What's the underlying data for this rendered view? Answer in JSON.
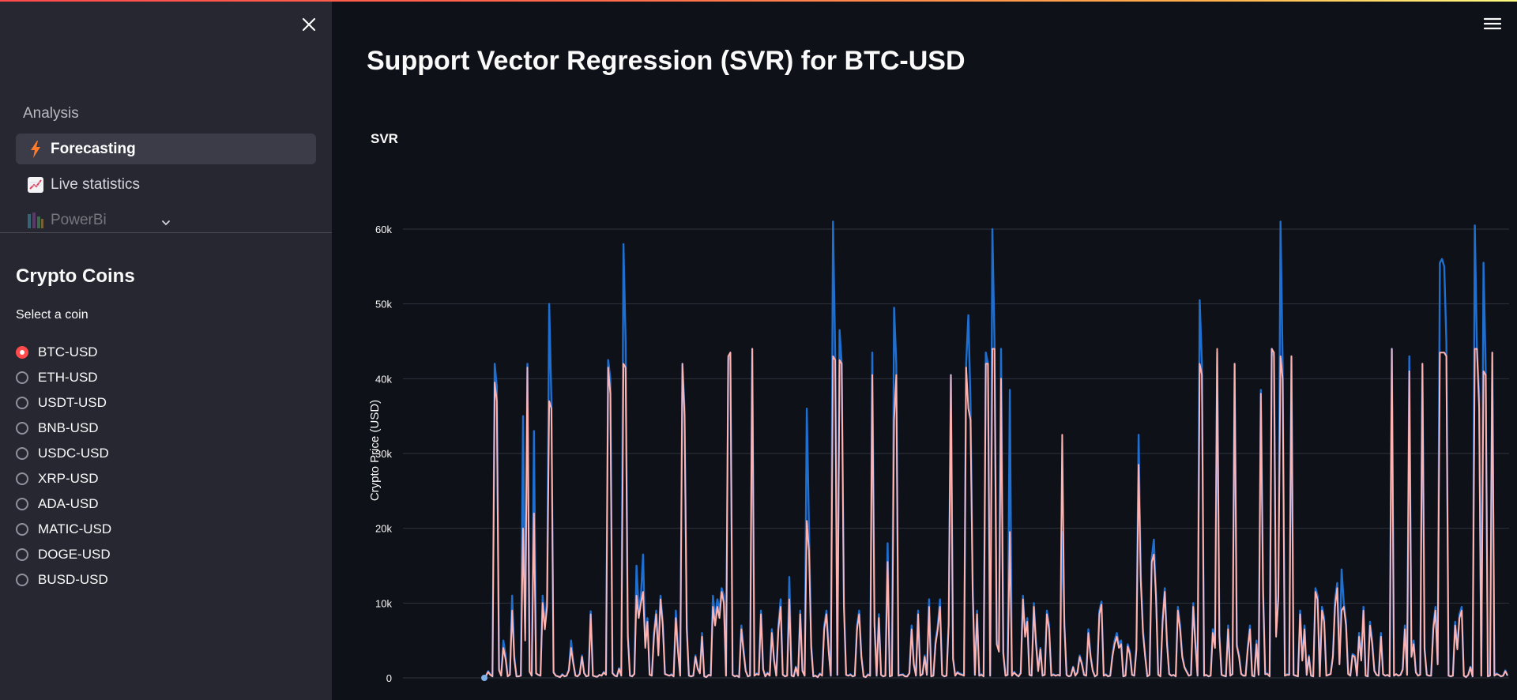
{
  "sidebar": {
    "close_icon": "close-icon",
    "section_label": "Analysis",
    "nav_items": [
      {
        "label": "Forecasting",
        "icon": "lightning-icon",
        "active": true
      },
      {
        "label": "Live statistics",
        "icon": "chart-increasing-icon",
        "active": false
      },
      {
        "label": "PowerBi",
        "icon": "powerbi-icon",
        "active": false
      }
    ],
    "heading": "Crypto Coins",
    "select_label": "Select a coin",
    "coins": [
      "BTC-USD",
      "ETH-USD",
      "USDT-USD",
      "BNB-USD",
      "USDC-USD",
      "XRP-USD",
      "ADA-USD",
      "MATIC-USD",
      "DOGE-USD",
      "BUSD-USD"
    ],
    "selected_coin": "BTC-USD"
  },
  "main": {
    "menu_icon": "hamburger-menu-icon",
    "title": "Support Vector Regression (SVR) for BTC-USD",
    "chart_title": "SVR"
  },
  "colors": {
    "accent": "#ff4b4b",
    "actual_series": "#1f6fd1",
    "predicted_series": "#ffb3b0"
  },
  "chart_data": {
    "type": "line",
    "title": "SVR",
    "xlabel": "",
    "ylabel": "Crypto Price (USD)",
    "ylim": [
      0,
      62000
    ],
    "y_ticks": [
      0,
      10000,
      20000,
      30000,
      40000,
      50000,
      60000
    ],
    "y_tick_labels": [
      "0",
      "10k",
      "20k",
      "30k",
      "40k",
      "50k",
      "60k"
    ],
    "grid": true,
    "series": [
      {
        "color": "#1f6fd1",
        "values": [
          300,
          900,
          500,
          200,
          42000,
          39000,
          1200,
          300,
          5000,
          3000,
          200,
          500,
          11000,
          3000,
          200,
          200,
          300,
          35000,
          6000,
          42000,
          900,
          300,
          33000,
          600,
          400,
          300,
          11000,
          7000,
          10500,
          50000,
          37000,
          800,
          300,
          200,
          100,
          500,
          200,
          300,
          1100,
          5000,
          2100,
          300,
          200,
          600,
          3000,
          700,
          200,
          300,
          8900,
          300,
          200,
          150,
          400,
          300,
          800,
          500,
          42500,
          40000,
          700,
          300,
          200,
          1300,
          300,
          58000,
          45000,
          6000,
          300,
          200,
          600,
          15000,
          9000,
          11000,
          16500,
          4500,
          8000,
          500,
          300,
          6000,
          9000,
          3500,
          11000,
          7500,
          600,
          400,
          300,
          500,
          200,
          9000,
          4000,
          300,
          42000,
          36000,
          7000,
          300,
          200,
          300,
          3000,
          1300,
          700,
          6000,
          200,
          100,
          400,
          300,
          11000,
          8000,
          10500,
          9000,
          12000,
          11000,
          300,
          42500,
          43500,
          400,
          200,
          300,
          100,
          7000,
          4000,
          1000,
          200,
          300,
          44000,
          300,
          600,
          500,
          9000,
          1200,
          200,
          700,
          300,
          6500,
          2400,
          300,
          7000,
          10500,
          500,
          200,
          300,
          13500,
          300,
          200,
          1500,
          300,
          9000,
          1000,
          300,
          36000,
          20000,
          4500,
          200,
          300,
          100,
          600,
          300,
          7000,
          9000,
          4000,
          300,
          61000,
          43000,
          400,
          46500,
          42000,
          10000,
          400,
          300,
          500,
          200,
          300,
          7000,
          9000,
          3000,
          200,
          100,
          500,
          300,
          43500,
          7500,
          300,
          8500,
          400,
          200,
          300,
          18000,
          200,
          300,
          49500,
          42000,
          300,
          400,
          500,
          200,
          200,
          700,
          7000,
          2000,
          300,
          9000,
          300,
          500,
          3000,
          400,
          10500,
          200,
          300,
          5000,
          7000,
          10500,
          400,
          200,
          300,
          7500,
          40500,
          2700,
          300,
          800,
          600,
          500,
          300,
          42000,
          48500,
          37000,
          12000,
          400,
          9000,
          300,
          500,
          200,
          43500,
          42000,
          300,
          60000,
          45000,
          5000,
          4000,
          44000,
          3500,
          300,
          400,
          38500,
          300,
          800,
          400,
          200,
          700,
          11000,
          6000,
          8000,
          400,
          300,
          10000,
          5000,
          1000,
          4000,
          300,
          500,
          9000,
          7000,
          300,
          500,
          300,
          400,
          300,
          19500,
          7500,
          400,
          200,
          300,
          1500,
          300,
          800,
          3000,
          2000,
          400,
          300,
          6500,
          3000,
          1000,
          200,
          400,
          9000,
          10200,
          300,
          500,
          200,
          300,
          3000,
          5000,
          6000,
          4500,
          5000,
          200,
          300,
          4500,
          3500,
          400,
          300,
          4000,
          32500,
          14000,
          6500,
          3000,
          200,
          400,
          16000,
          18500,
          11000,
          500,
          200,
          8000,
          12000,
          5000,
          600,
          300,
          400,
          200,
          9500,
          7000,
          3000,
          1500,
          900,
          300,
          400,
          10000,
          5000,
          300,
          50500,
          42000,
          300,
          400,
          200,
          300,
          6500,
          4500,
          43500,
          6000,
          400,
          300,
          200,
          7000,
          300,
          500,
          42000,
          4500,
          3000,
          600,
          300,
          300,
          4000,
          7000,
          300,
          200,
          5000,
          400,
          38500,
          12000,
          500,
          600,
          200,
          44000,
          43000,
          6000,
          11000,
          61000,
          42000,
          300,
          500,
          400,
          43000,
          400,
          300,
          200,
          9000,
          2500,
          7000,
          400,
          3000,
          300,
          200,
          12000,
          11000,
          200,
          9500,
          8000,
          300,
          400,
          600,
          3000,
          10500,
          12700,
          2000,
          14500,
          10000,
          7500,
          600,
          300,
          3200,
          3000,
          300,
          6000,
          2500,
          9500,
          300,
          200,
          7500,
          5000,
          1000,
          400,
          300,
          6000,
          500,
          300,
          400,
          200,
          44000,
          300,
          500,
          300,
          400,
          1200,
          7000,
          400,
          43000,
          3000,
          5000,
          800,
          300,
          500,
          42000,
          4000,
          400,
          300,
          300,
          7000,
          9500,
          2000,
          55500,
          56000,
          55000,
          45000,
          300,
          200,
          300,
          7500,
          4000,
          8500,
          9500,
          300,
          100,
          400,
          1500,
          200,
          60500,
          44000,
          38000,
          300,
          55500,
          41000,
          200,
          300,
          43500,
          300,
          600,
          400,
          200,
          300,
          1000,
          300
        ]
      },
      {
        "color": "#ffb3b0",
        "values": [
          200,
          800,
          400,
          200,
          39500,
          37000,
          1000,
          300,
          4000,
          2500,
          200,
          400,
          9000,
          2500,
          200,
          200,
          300,
          20000,
          5000,
          41500,
          800,
          300,
          22000,
          600,
          400,
          300,
          10000,
          6500,
          9500,
          37000,
          36000,
          700,
          300,
          200,
          100,
          400,
          200,
          300,
          1000,
          4000,
          2000,
          300,
          200,
          500,
          2800,
          600,
          200,
          300,
          8500,
          300,
          200,
          150,
          400,
          300,
          700,
          400,
          41500,
          38000,
          600,
          300,
          200,
          1200,
          300,
          42000,
          41500,
          5500,
          300,
          200,
          500,
          11000,
          8000,
          10000,
          11500,
          4000,
          7500,
          400,
          300,
          5500,
          8500,
          3000,
          10500,
          7000,
          500,
          400,
          300,
          400,
          200,
          8000,
          3500,
          300,
          42000,
          35000,
          6500,
          300,
          200,
          300,
          2800,
          1200,
          600,
          5500,
          200,
          100,
          400,
          300,
          9500,
          7000,
          9500,
          8000,
          11500,
          10000,
          300,
          43000,
          43500,
          400,
          200,
          300,
          100,
          6500,
          3500,
          900,
          200,
          300,
          44000,
          300,
          500,
          400,
          8500,
          1100,
          200,
          600,
          300,
          6000,
          2300,
          300,
          6500,
          9500,
          400,
          200,
          300,
          10500,
          300,
          200,
          1400,
          300,
          8500,
          900,
          300,
          21000,
          17000,
          4000,
          200,
          300,
          100,
          500,
          300,
          6500,
          8500,
          3500,
          300,
          43000,
          42500,
          400,
          42500,
          42000,
          9500,
          400,
          300,
          400,
          200,
          300,
          6500,
          8500,
          2800,
          200,
          100,
          400,
          300,
          40500,
          7000,
          300,
          8000,
          400,
          200,
          300,
          15500,
          200,
          300,
          34500,
          40500,
          300,
          400,
          400,
          200,
          200,
          600,
          6500,
          1800,
          300,
          8500,
          300,
          500,
          2800,
          400,
          9500,
          200,
          300,
          4500,
          6500,
          9500,
          400,
          200,
          300,
          7000,
          40500,
          2500,
          300,
          700,
          500,
          400,
          300,
          41500,
          36000,
          34500,
          11500,
          400,
          8500,
          300,
          400,
          200,
          42000,
          42000,
          300,
          44000,
          44000,
          4500,
          3500,
          40000,
          3200,
          300,
          400,
          19500,
          300,
          700,
          400,
          200,
          600,
          10500,
          5500,
          7500,
          400,
          300,
          9500,
          4500,
          900,
          3800,
          300,
          400,
          8500,
          6500,
          300,
          400,
          300,
          400,
          300,
          32500,
          7000,
          400,
          200,
          300,
          1400,
          300,
          700,
          2800,
          1800,
          400,
          300,
          6000,
          2800,
          900,
          200,
          400,
          8500,
          9800,
          300,
          400,
          200,
          300,
          2800,
          4500,
          5500,
          4000,
          4500,
          200,
          300,
          4200,
          3200,
          400,
          300,
          3800,
          28500,
          13000,
          6000,
          2800,
          200,
          400,
          15500,
          16500,
          10500,
          400,
          200,
          7500,
          11500,
          4500,
          500,
          300,
          400,
          200,
          9000,
          6500,
          2800,
          1400,
          800,
          300,
          400,
          9500,
          4500,
          300,
          42000,
          40500,
          300,
          400,
          200,
          300,
          6000,
          4000,
          44000,
          5500,
          400,
          300,
          200,
          6500,
          300,
          500,
          42000,
          4200,
          2800,
          500,
          300,
          300,
          3800,
          6500,
          300,
          200,
          4500,
          400,
          38000,
          11500,
          500,
          500,
          200,
          44000,
          43500,
          5500,
          10500,
          43000,
          40000,
          300,
          400,
          400,
          43000,
          400,
          300,
          200,
          8500,
          2300,
          6500,
          400,
          2800,
          300,
          200,
          11500,
          10500,
          200,
          9000,
          7500,
          300,
          400,
          500,
          2800,
          9500,
          12000,
          1800,
          9000,
          9500,
          7000,
          500,
          300,
          3000,
          2800,
          300,
          5500,
          2300,
          9000,
          300,
          200,
          7000,
          4500,
          900,
          400,
          300,
          5500,
          500,
          300,
          400,
          200,
          44000,
          300,
          500,
          300,
          400,
          1100,
          6500,
          400,
          41000,
          2800,
          4500,
          700,
          300,
          400,
          42000,
          3800,
          400,
          300,
          300,
          6500,
          9000,
          1800,
          43500,
          43500,
          43500,
          43000,
          300,
          200,
          300,
          7000,
          3800,
          8000,
          9000,
          300,
          100,
          400,
          1400,
          200,
          44000,
          44000,
          36000,
          300,
          41000,
          40500,
          200,
          300,
          43500,
          300,
          500,
          400,
          200,
          300,
          900,
          300
        ]
      }
    ]
  }
}
